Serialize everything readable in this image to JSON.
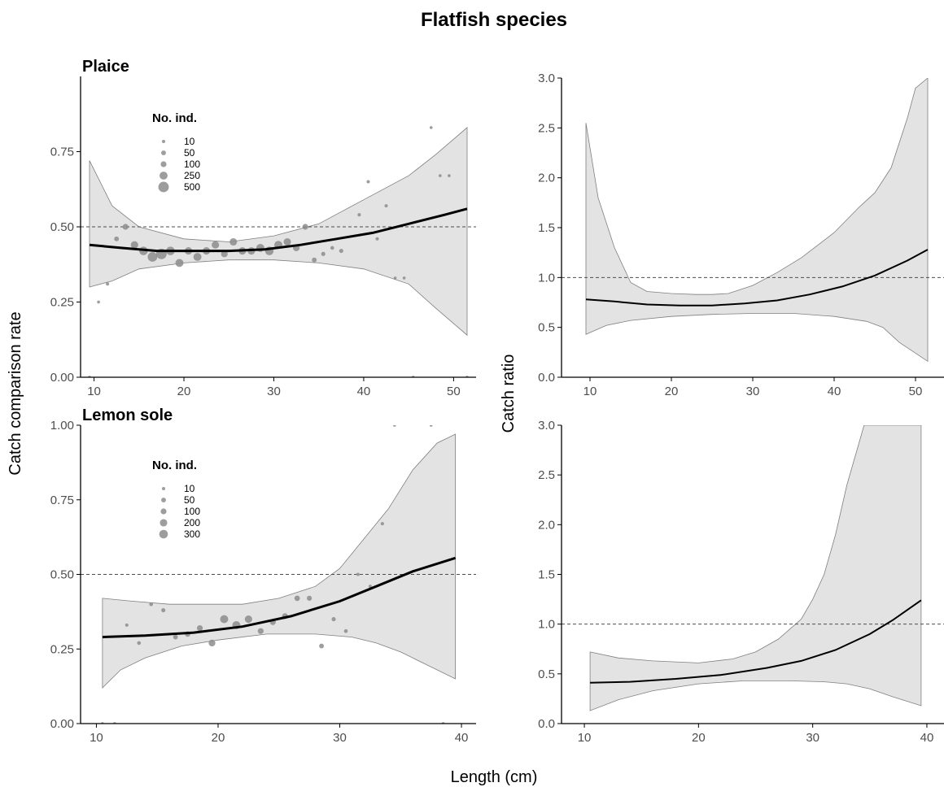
{
  "figure": {
    "title": "Flatfish species",
    "xlabel": "Length (cm)",
    "left_ylabel": "Catch comparison rate",
    "right_ylabel": "Catch ratio"
  },
  "colors": {
    "ribbon": "#e3e3e3",
    "ribbon_edge": "#7f7f7f",
    "fit_line": "#000000",
    "points": "#8c8c8c",
    "reference_line": "#4d4d4d",
    "axis": "#000000",
    "tick_text": "#4d4d4d"
  },
  "chart_data": [
    {
      "id": "plaice-ccr",
      "type": "scatter",
      "panel_title": "Plaice",
      "xlim": [
        8.5,
        52.5
      ],
      "ylim": [
        0,
        1
      ],
      "xticks": [
        10,
        20,
        30,
        40,
        50
      ],
      "yticks": [
        0,
        0.25,
        0.5,
        0.75
      ],
      "ytick_labels": [
        "0.00",
        "0.25",
        "0.50",
        "0.75"
      ],
      "reference": 0.5,
      "legend": {
        "title": "No. ind.",
        "labels": [
          "10",
          "50",
          "100",
          "250",
          "500"
        ],
        "sizes": [
          10,
          50,
          100,
          250,
          500
        ]
      },
      "fit": {
        "x": [
          9.5,
          13,
          17,
          21,
          25,
          29,
          33,
          37,
          41,
          45,
          49,
          51.5
        ],
        "y": [
          0.44,
          0.43,
          0.42,
          0.42,
          0.42,
          0.425,
          0.44,
          0.46,
          0.48,
          0.51,
          0.54,
          0.56
        ]
      },
      "ci_upper": {
        "x": [
          9.5,
          12,
          15,
          20,
          25,
          30,
          35,
          40,
          45,
          48,
          51.5
        ],
        "y": [
          0.72,
          0.57,
          0.5,
          0.46,
          0.45,
          0.47,
          0.51,
          0.59,
          0.67,
          0.74,
          0.83
        ]
      },
      "ci_lower": {
        "x": [
          9.5,
          12,
          15,
          20,
          25,
          30,
          35,
          40,
          45,
          48,
          51.5
        ],
        "y": [
          0.3,
          0.32,
          0.36,
          0.38,
          0.39,
          0.39,
          0.38,
          0.36,
          0.31,
          0.23,
          0.14
        ]
      },
      "points": {
        "x": [
          9.5,
          10.5,
          11.5,
          12.5,
          13.5,
          14.5,
          15.5,
          16.5,
          17.5,
          18.5,
          19.5,
          20.5,
          21.5,
          22.5,
          23.5,
          24.5,
          25.5,
          26.5,
          27.5,
          28.5,
          29.5,
          30.5,
          31.5,
          32.5,
          33.5,
          34.5,
          35.5,
          36.5,
          37.5,
          39.5,
          40.5,
          41.5,
          42.5,
          43.5,
          44.5,
          45.5,
          47.5,
          48.5,
          49.5,
          51.5
        ],
        "y": [
          0.0,
          0.25,
          0.31,
          0.46,
          0.5,
          0.44,
          0.42,
          0.4,
          0.41,
          0.42,
          0.38,
          0.42,
          0.4,
          0.42,
          0.44,
          0.41,
          0.45,
          0.42,
          0.42,
          0.43,
          0.42,
          0.44,
          0.45,
          0.43,
          0.5,
          0.39,
          0.41,
          0.43,
          0.42,
          0.54,
          0.65,
          0.46,
          0.57,
          0.33,
          0.33,
          0.0,
          0.83,
          0.67,
          0.67,
          0.0
        ],
        "n": [
          5,
          5,
          10,
          50,
          100,
          200,
          300,
          400,
          500,
          300,
          250,
          200,
          250,
          200,
          200,
          150,
          200,
          200,
          200,
          250,
          300,
          250,
          200,
          150,
          100,
          50,
          30,
          20,
          30,
          10,
          10,
          10,
          10,
          5,
          5,
          5,
          5,
          5,
          5,
          5
        ]
      }
    },
    {
      "id": "plaice-cr",
      "type": "line",
      "panel_title": "",
      "xlim": [
        6.5,
        53.5
      ],
      "ylim": [
        0,
        3
      ],
      "xticks": [
        10,
        20,
        30,
        40,
        50
      ],
      "yticks": [
        0,
        0.5,
        1,
        1.5,
        2,
        2.5,
        3
      ],
      "ytick_labels": [
        "0.0",
        "0.5",
        "1.0",
        "1.5",
        "2.0",
        "2.5",
        "3.0"
      ],
      "reference": 1,
      "fit": {
        "x": [
          9.5,
          13,
          17,
          21,
          25,
          29,
          33,
          37,
          41,
          45,
          49,
          51.5
        ],
        "y": [
          0.78,
          0.76,
          0.73,
          0.72,
          0.72,
          0.74,
          0.77,
          0.83,
          0.91,
          1.02,
          1.17,
          1.28
        ]
      },
      "ci_upper": {
        "x": [
          9.5,
          11,
          13,
          15,
          17,
          20,
          23,
          25,
          27,
          30,
          33,
          36,
          40,
          43,
          45,
          47,
          49,
          50,
          51.5
        ],
        "y": [
          2.55,
          1.8,
          1.3,
          0.95,
          0.86,
          0.84,
          0.83,
          0.83,
          0.84,
          0.92,
          1.05,
          1.2,
          1.45,
          1.7,
          1.85,
          2.1,
          2.6,
          2.9,
          3.0
        ]
      },
      "ci_lower": {
        "x": [
          9.5,
          12,
          15,
          20,
          25,
          30,
          35,
          40,
          44,
          46,
          48,
          51.5
        ],
        "y": [
          0.43,
          0.52,
          0.57,
          0.61,
          0.63,
          0.64,
          0.64,
          0.61,
          0.56,
          0.5,
          0.35,
          0.16
        ]
      }
    },
    {
      "id": "lemon-sole-ccr",
      "type": "scatter",
      "panel_title": "Lemon sole",
      "xlim": [
        8.7,
        41.2
      ],
      "ylim": [
        0,
        1
      ],
      "xticks": [
        10,
        20,
        30,
        40
      ],
      "yticks": [
        0,
        0.25,
        0.5,
        0.75,
        1
      ],
      "ytick_labels": [
        "0.00",
        "0.25",
        "0.50",
        "0.75",
        "1.00"
      ],
      "reference": 0.5,
      "legend": {
        "title": "No. ind.",
        "labels": [
          "10",
          "50",
          "100",
          "200",
          "300"
        ],
        "sizes": [
          10,
          50,
          100,
          200,
          300
        ]
      },
      "fit": {
        "x": [
          10.5,
          14,
          18,
          22,
          26,
          30,
          33,
          36,
          39.5
        ],
        "y": [
          0.29,
          0.295,
          0.305,
          0.325,
          0.36,
          0.41,
          0.46,
          0.51,
          0.555
        ]
      },
      "ci_upper": {
        "x": [
          10.5,
          13,
          16,
          19,
          22,
          25,
          28,
          30,
          32,
          34,
          36,
          38,
          39.5
        ],
        "y": [
          0.42,
          0.41,
          0.4,
          0.4,
          0.4,
          0.42,
          0.46,
          0.52,
          0.62,
          0.72,
          0.85,
          0.94,
          0.97
        ]
      },
      "ci_lower": {
        "x": [
          10.5,
          12,
          14,
          17,
          20,
          24,
          28,
          31,
          33,
          35,
          37,
          39.5
        ],
        "y": [
          0.12,
          0.18,
          0.22,
          0.26,
          0.28,
          0.3,
          0.3,
          0.29,
          0.27,
          0.24,
          0.2,
          0.15
        ]
      },
      "points": {
        "x": [
          10.5,
          11.5,
          12.5,
          13.5,
          14.5,
          15.5,
          16.5,
          17.5,
          18.5,
          19.5,
          20.5,
          21.5,
          22.5,
          23.5,
          24.5,
          25.5,
          26.5,
          27.5,
          28.5,
          29.5,
          30.5,
          31.5,
          32.5,
          33.5,
          34.5,
          37.5,
          38.5
        ],
        "y": [
          0.0,
          0.0,
          0.33,
          0.27,
          0.4,
          0.38,
          0.29,
          0.3,
          0.32,
          0.27,
          0.35,
          0.33,
          0.35,
          0.31,
          0.34,
          0.36,
          0.42,
          0.42,
          0.26,
          0.35,
          0.31,
          0.5,
          0.46,
          0.67,
          1.0,
          1.0,
          0.0
        ],
        "n": [
          5,
          5,
          10,
          20,
          20,
          30,
          50,
          80,
          100,
          150,
          250,
          250,
          200,
          100,
          100,
          100,
          80,
          60,
          50,
          30,
          20,
          10,
          10,
          10,
          5,
          5,
          5
        ]
      }
    },
    {
      "id": "lemon-sole-cr",
      "type": "line",
      "panel_title": "",
      "xlim": [
        8,
        41.5
      ],
      "ylim": [
        0,
        3
      ],
      "xticks": [
        10,
        20,
        30,
        40
      ],
      "yticks": [
        0,
        0.5,
        1,
        1.5,
        2,
        2.5,
        3
      ],
      "ytick_labels": [
        "0.0",
        "0.5",
        "1.0",
        "1.5",
        "2.0",
        "2.5",
        "3.0"
      ],
      "reference": 1,
      "fit": {
        "x": [
          10.5,
          14,
          18,
          22,
          26,
          29,
          32,
          35,
          37,
          39.5
        ],
        "y": [
          0.41,
          0.42,
          0.45,
          0.49,
          0.56,
          0.63,
          0.74,
          0.9,
          1.04,
          1.24
        ]
      },
      "ci_upper": {
        "x": [
          10.5,
          13,
          16,
          20,
          23,
          25,
          27,
          29,
          30,
          31,
          32,
          33,
          34,
          34.5,
          39.5
        ],
        "y": [
          0.72,
          0.66,
          0.63,
          0.61,
          0.65,
          0.72,
          0.85,
          1.05,
          1.25,
          1.5,
          1.9,
          2.4,
          2.8,
          3.0,
          3.0
        ]
      },
      "ci_lower": {
        "x": [
          10.5,
          13,
          16,
          20,
          24,
          28,
          31,
          33,
          35,
          37,
          39.5
        ],
        "y": [
          0.13,
          0.24,
          0.33,
          0.4,
          0.43,
          0.43,
          0.42,
          0.4,
          0.35,
          0.27,
          0.18
        ]
      }
    }
  ]
}
